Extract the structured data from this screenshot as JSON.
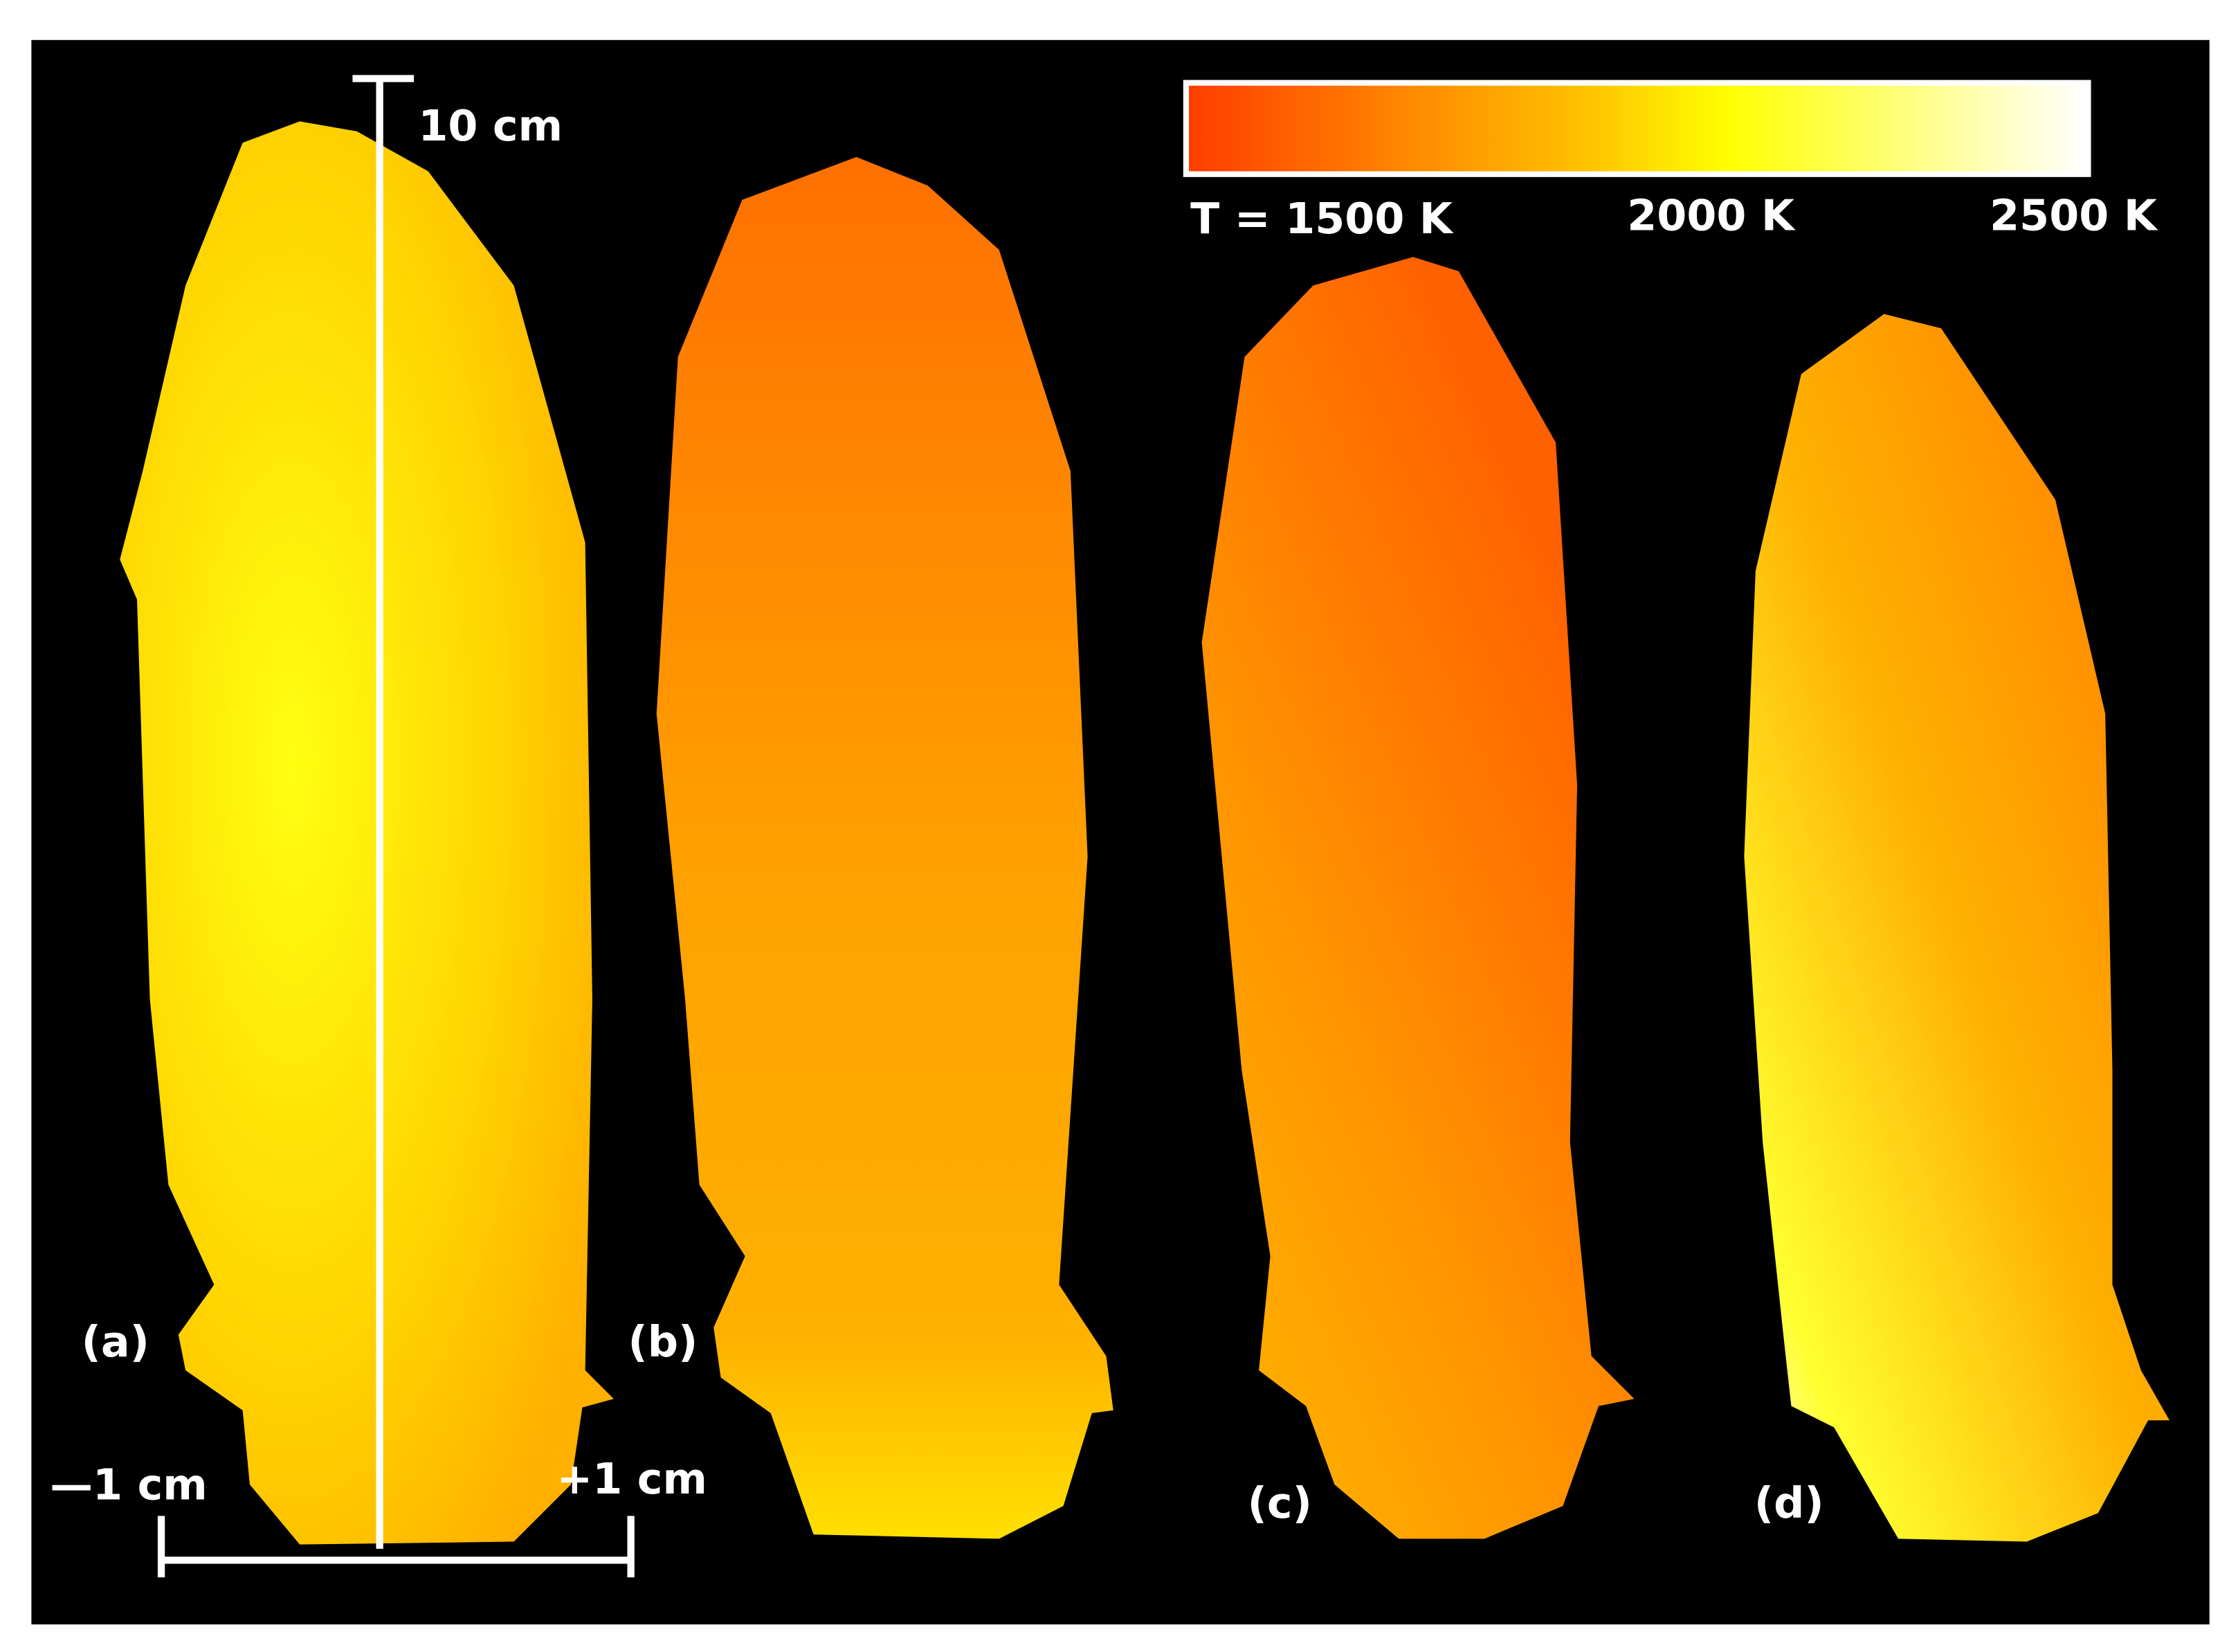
{
  "scale": {
    "length_label": "10 cm",
    "left_label": "—1 cm",
    "right_label": "+1 cm"
  },
  "colorbar": {
    "labels": [
      "T = 1500 K",
      "2000 K",
      "2500 K"
    ]
  },
  "panels": [
    "(a)",
    "(b)",
    "(c)",
    "(d)"
  ]
}
